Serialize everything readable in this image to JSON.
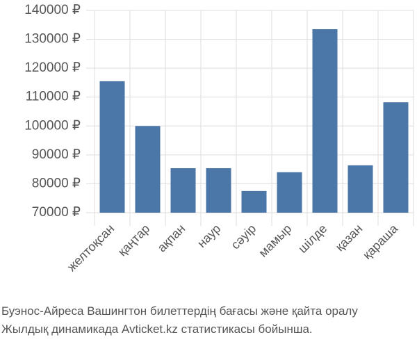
{
  "chart_data": {
    "type": "bar",
    "categories": [
      "желтоқсан",
      "қаңтар",
      "ақпан",
      "наур",
      "сәуір",
      "мамыр",
      "шілде",
      "қазан",
      "қараша"
    ],
    "values": [
      115500,
      100000,
      85400,
      85400,
      77500,
      84000,
      133500,
      86400,
      108200
    ],
    "color": "#4a76a8",
    "ylim": [
      70000,
      140000
    ],
    "yticks": [
      {
        "value": 70000,
        "label": "70000 ₽"
      },
      {
        "value": 80000,
        "label": "80000 ₽"
      },
      {
        "value": 90000,
        "label": "90000 ₽"
      },
      {
        "value": 100000,
        "label": "100000 ₽"
      },
      {
        "value": 110000,
        "label": "110000 ₽"
      },
      {
        "value": 120000,
        "label": "120000 ₽"
      },
      {
        "value": 130000,
        "label": "130000 ₽"
      },
      {
        "value": 140000,
        "label": "140000 ₽"
      }
    ],
    "grid": true,
    "caption": [
      "Буэнос-Айреса Вашингтон билеттердің бағасы және қайта оралу",
      "Жылдық динамикада Avticket.kz статистикасы бойынша."
    ]
  }
}
